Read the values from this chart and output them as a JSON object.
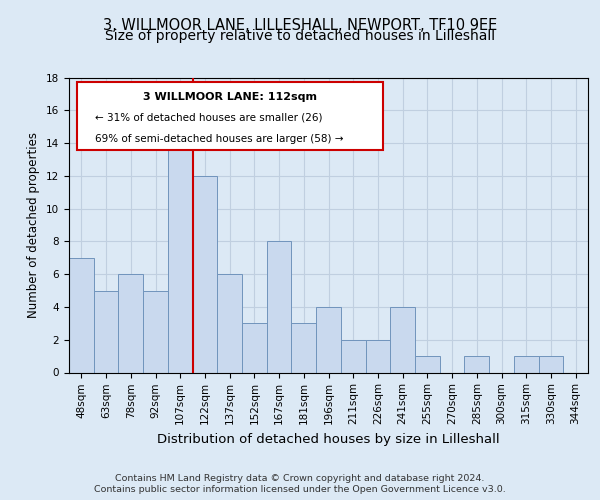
{
  "title": "3, WILLMOOR LANE, LILLESHALL, NEWPORT, TF10 9EE",
  "subtitle": "Size of property relative to detached houses in Lilleshall",
  "xlabel": "Distribution of detached houses by size in Lilleshall",
  "ylabel": "Number of detached properties",
  "categories": [
    "48sqm",
    "63sqm",
    "78sqm",
    "92sqm",
    "107sqm",
    "122sqm",
    "137sqm",
    "152sqm",
    "167sqm",
    "181sqm",
    "196sqm",
    "211sqm",
    "226sqm",
    "241sqm",
    "255sqm",
    "270sqm",
    "285sqm",
    "300sqm",
    "315sqm",
    "330sqm",
    "344sqm"
  ],
  "values": [
    7,
    5,
    6,
    5,
    14,
    12,
    6,
    3,
    8,
    3,
    4,
    2,
    2,
    4,
    1,
    0,
    1,
    0,
    1,
    1,
    0
  ],
  "bar_color": "#c9d9ee",
  "bar_edge_color": "#7094bc",
  "vline_x_idx": 5,
  "vline_color": "#cc0000",
  "ylim": [
    0,
    18
  ],
  "yticks": [
    0,
    2,
    4,
    6,
    8,
    10,
    12,
    14,
    16,
    18
  ],
  "annotation_box": {
    "title": "3 WILLMOOR LANE: 112sqm",
    "line1": "← 31% of detached houses are smaller (26)",
    "line2": "69% of semi-detached houses are larger (58) →",
    "box_color": "#ffffff",
    "box_edge_color": "#cc0000"
  },
  "footnote1": "Contains HM Land Registry data © Crown copyright and database right 2024.",
  "footnote2": "Contains public sector information licensed under the Open Government Licence v3.0.",
  "fig_bg_color": "#dce9f5",
  "plot_bg_color": "#dce9f5",
  "grid_color": "#c0cfe0",
  "title_fontsize": 10.5,
  "ylabel_fontsize": 8.5,
  "xlabel_fontsize": 9.5,
  "tick_fontsize": 7.5,
  "footnote_fontsize": 6.8
}
